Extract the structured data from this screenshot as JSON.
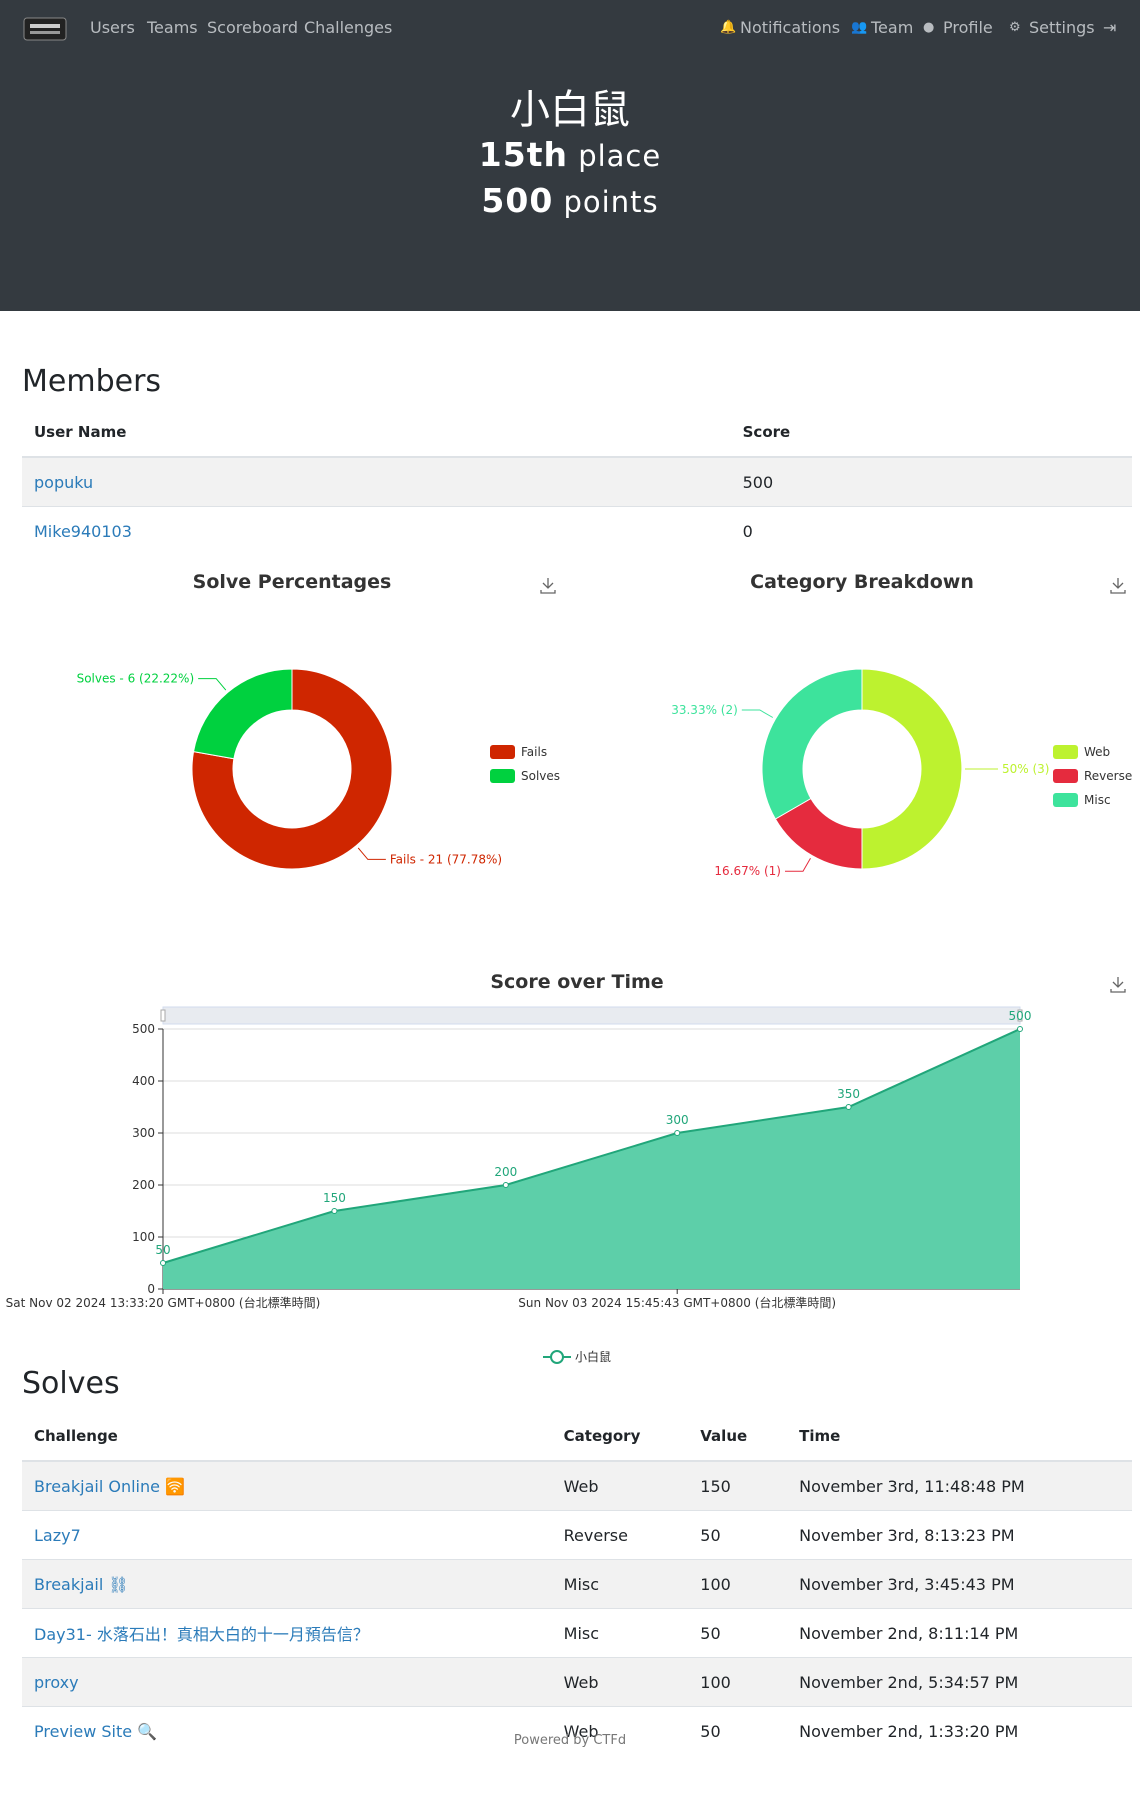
{
  "navbar": {
    "links": [
      "Users",
      "Teams",
      "Scoreboard",
      "Challenges"
    ],
    "right_links": [
      "Notifications",
      "Team",
      "Profile",
      "Settings"
    ]
  },
  "header": {
    "name": "小白鼠",
    "place": "15th",
    "place_label": "place",
    "points": "500",
    "points_label": "points"
  },
  "members": {
    "title": "Members",
    "columns": [
      "User Name",
      "Score"
    ],
    "rows": [
      [
        "popuku",
        500
      ],
      [
        "Mike940103",
        0
      ]
    ]
  },
  "chart_data": [
    {
      "type": "pie",
      "title": "Solve Percentages",
      "donut": true,
      "categories": [
        "Fails",
        "Solves"
      ],
      "values": [
        21,
        6
      ],
      "value_labels": [
        "Fails - 21 (77.78%)",
        "Solves - 6 (22.22%)"
      ],
      "colors": [
        "#cf2600",
        "#00d13f"
      ]
    },
    {
      "type": "pie",
      "title": "Category Breakdown",
      "donut": true,
      "categories": [
        "Web",
        "Reverse",
        "Misc"
      ],
      "values": [
        3,
        1,
        2
      ],
      "value_labels": [
        "50% (3)",
        "16.67% (1)",
        "33.33% (2)"
      ],
      "colors": [
        "#bdf22f",
        "#e52b3e",
        "#3de39c"
      ]
    },
    {
      "type": "line",
      "title": "Score over Time",
      "area": true,
      "categories": [
        "Sat Nov 02 2024 13:33:20 GMT+0800 (台北標準時間)",
        null,
        null,
        "Sun Nov 03 2024 15:45:43 GMT+0800 (台北標準時間)",
        null,
        null
      ],
      "series": [
        {
          "name": "小白鼠",
          "color": "#21a67a",
          "values": [
            50,
            150,
            200,
            300,
            350,
            500
          ]
        }
      ],
      "ylim": [
        0,
        500
      ],
      "yticks": [
        0,
        100,
        200,
        300,
        400,
        500
      ],
      "grid": true
    }
  ],
  "solves": {
    "title": "Solves",
    "columns": [
      "Challenge",
      "Category",
      "Value",
      "Time"
    ],
    "rows": [
      [
        "Breakjail Online 🛜",
        "Web",
        150,
        "November 3rd, 11:48:48 PM"
      ],
      [
        "Lazy7",
        "Reverse",
        50,
        "November 3rd, 8:13:23 PM"
      ],
      [
        "Breakjail ⛓",
        "Misc",
        100,
        "November 3rd, 3:45:43 PM"
      ],
      [
        "Day31- 水落石出！真相大白的十一月預告信？",
        "Misc",
        50,
        "November 2nd, 8:11:14 PM"
      ],
      [
        "proxy",
        "Web",
        100,
        "November 2nd, 5:34:57 PM"
      ],
      [
        "Preview Site 🔍",
        "Web",
        50,
        "November 2nd, 1:33:20 PM"
      ]
    ]
  },
  "footer": "Powered by CTFd"
}
